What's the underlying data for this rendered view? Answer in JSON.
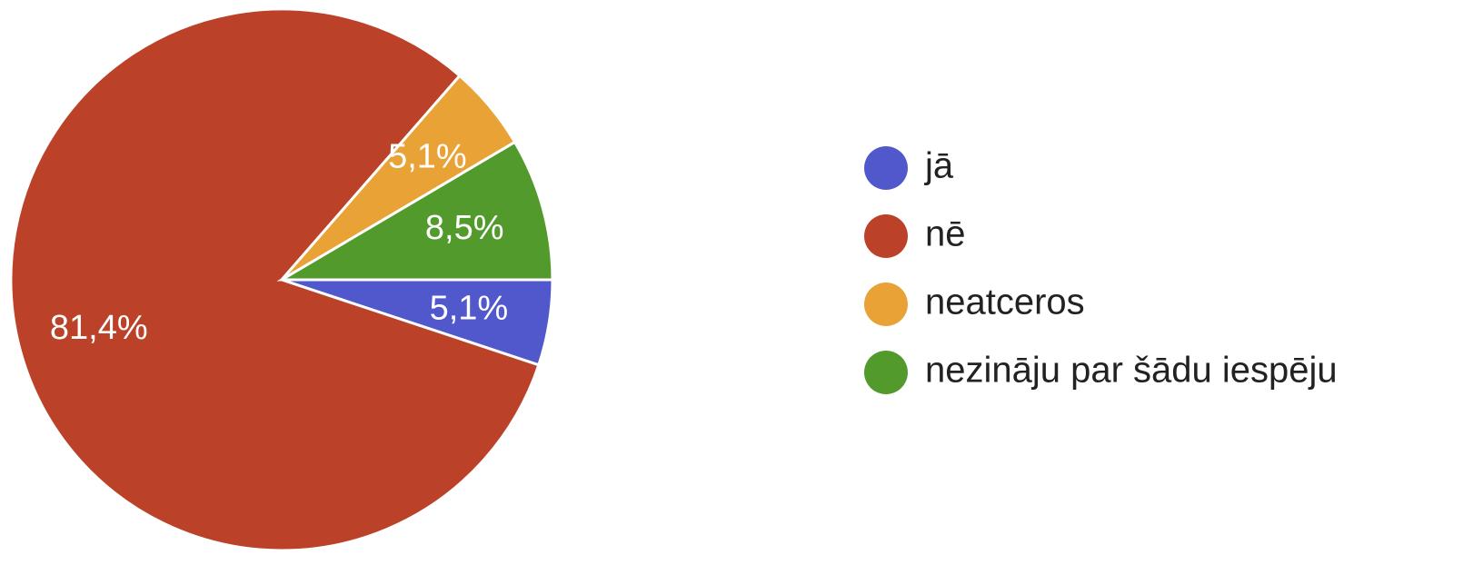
{
  "chart_data": {
    "type": "pie",
    "categories": [
      "jā",
      "nē",
      "neatceros",
      "nezināju par šādu iespēju"
    ],
    "values": [
      5.1,
      81.4,
      5.1,
      8.5
    ],
    "value_labels": [
      "5,1%",
      "81,4%",
      "5,1%",
      "8,5%"
    ],
    "colors": [
      "#5058cc",
      "#bb4128",
      "#e8a235",
      "#539a2c"
    ]
  }
}
